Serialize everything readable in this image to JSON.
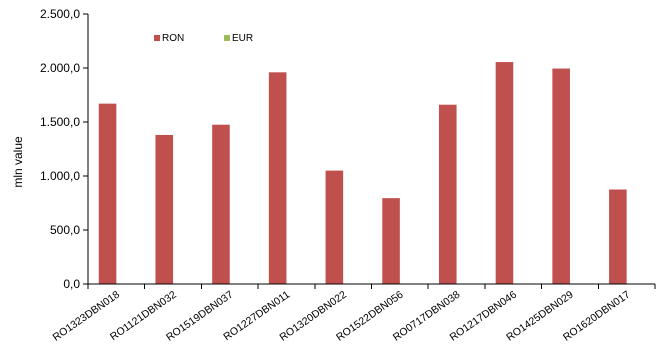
{
  "chart_data": {
    "type": "bar",
    "title": "",
    "xlabel": "",
    "ylabel": "mln  value",
    "ylim": [
      0,
      2500
    ],
    "yticks": [
      0,
      500,
      1000,
      1500,
      2000,
      2500
    ],
    "ytick_labels": [
      "0,0",
      "500,0",
      "1.000,0",
      "1.500,0",
      "2.000,0",
      "2.500,0"
    ],
    "grid": false,
    "legend_position": "top-left",
    "categories": [
      "RO1323DBN018",
      "RO1121DBN032",
      "RO1519DBN037",
      "RO1227DBN011",
      "RO1320DBN022",
      "RO1522DBN056",
      "RO0717DBN038",
      "RO1217DBN046",
      "RO1425DBN029",
      "RO1620DBN017"
    ],
    "series": [
      {
        "name": "RON",
        "color": "#C0504D",
        "values": [
          1670,
          1380,
          1475,
          1960,
          1050,
          795,
          1660,
          2055,
          1995,
          875
        ]
      },
      {
        "name": "EUR",
        "color": "#9BBB59",
        "values": [
          0,
          0,
          0,
          0,
          0,
          0,
          0,
          0,
          0,
          0
        ]
      }
    ]
  }
}
